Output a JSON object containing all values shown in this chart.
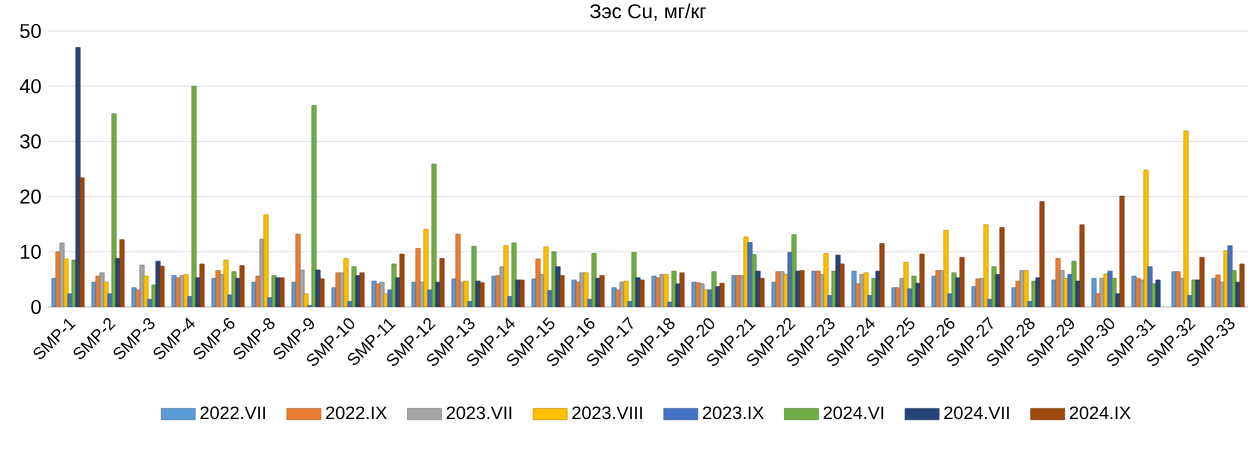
{
  "chart_data": {
    "type": "bar",
    "title": "Зэс Cu, мг/кг",
    "categories": [
      "SMP-1",
      "SMP-2",
      "SMP-3",
      "SMP-4",
      "SMP-6",
      "SMP-8",
      "SMP-9",
      "SMP-10",
      "SMP-11",
      "SMP-12",
      "SMP-13",
      "SMP-14",
      "SMP-15",
      "SMP-16",
      "SMP-17",
      "SMP-18",
      "SMP-20",
      "SMP-21",
      "SMP-22",
      "SMP-23",
      "SMP-24",
      "SMP-25",
      "SMP-26",
      "SMP-27",
      "SMP-28",
      "SMP-29",
      "SMP-30",
      "SMP-31",
      "SMP-32",
      "SMP-33"
    ],
    "series": [
      {
        "name": "2022.VII",
        "color": "#5b9bd5",
        "values": [
          5.2,
          4.5,
          3.5,
          5.7,
          5.2,
          4.5,
          4.5,
          3.5,
          4.7,
          4.5,
          5.1,
          5.6,
          5.1,
          4.9,
          3.5,
          5.6,
          4.5,
          5.7,
          4.5,
          6.5,
          6.5,
          3.5,
          5.6,
          3.7,
          3.5,
          4.9,
          5.2,
          5.6,
          6.4,
          5.2
        ]
      },
      {
        "name": "2022.IX",
        "color": "#ed7d31",
        "values": [
          10,
          5.6,
          3.1,
          5.3,
          6.6,
          5.6,
          13.2,
          6.2,
          4.2,
          10.6,
          13.2,
          5.7,
          8.7,
          4.5,
          3.1,
          5.3,
          4.4,
          5.7,
          6.4,
          6.5,
          4.2,
          3.5,
          6.6,
          5.1,
          4.7,
          8.8,
          2.4,
          5.2,
          6.4,
          5.8
        ]
      },
      {
        "name": "2023.VII",
        "color": "#a5a5a5",
        "values": [
          11.6,
          6.2,
          7.6,
          5.7,
          5.9,
          12.3,
          6.7,
          6.2,
          4.5,
          4.5,
          4.5,
          7.3,
          5.9,
          6.2,
          4.5,
          5.9,
          4.2,
          5.7,
          6.4,
          5.9,
          5.9,
          5.2,
          6.6,
          5.2,
          6.6,
          6.6,
          5.2,
          4.9,
          5.2,
          4.5
        ]
      },
      {
        "name": "2023.VIII",
        "color": "#ffc000",
        "values": [
          8.7,
          4.5,
          5.6,
          5.9,
          8.5,
          16.7,
          2.4,
          8.8,
          2.4,
          14.1,
          4.7,
          11.1,
          10.9,
          6.2,
          4.7,
          5.9,
          3.1,
          12.7,
          5.9,
          9.7,
          6.2,
          8.1,
          13.9,
          14.9,
          6.6,
          5.2,
          6,
          24.8,
          31.9,
          10.2
        ]
      },
      {
        "name": "2023.IX",
        "color": "#4472c4",
        "values": [
          2.4,
          2.4,
          1.4,
          1.9,
          2.2,
          1.7,
          0.3,
          1,
          3.1,
          3.1,
          1,
          1.9,
          3,
          1.4,
          1,
          0.9,
          3.1,
          11.7,
          9.9,
          2.1,
          2.1,
          3.3,
          2.4,
          1.4,
          1,
          5.9,
          6.5,
          7.3,
          2.1,
          11.1
        ]
      },
      {
        "name": "2024.VI",
        "color": "#70ad47",
        "values": [
          8.5,
          35,
          4,
          40,
          6.4,
          5.7,
          36.5,
          7.3,
          7.8,
          25.9,
          11,
          11.6,
          10,
          9.7,
          9.9,
          6.5,
          6.4,
          9.5,
          13.1,
          6.5,
          5.2,
          5.6,
          6.2,
          7.3,
          4.7,
          8.3,
          5.2,
          4.2,
          4.9,
          6.6
        ]
      },
      {
        "name": "2024.VII",
        "color": "#264478",
        "values": [
          47,
          8.8,
          8.3,
          5.3,
          5.2,
          5.3,
          6.7,
          5.7,
          5.3,
          4.5,
          4.7,
          4.9,
          7.3,
          5.2,
          5.3,
          4.2,
          3.7,
          6.5,
          6.5,
          9.4,
          6.5,
          4.3,
          5.3,
          5.9,
          5.3,
          4.7,
          2.4,
          4.9,
          4.9,
          4.5
        ]
      },
      {
        "name": "2024.IX",
        "color": "#9e480e",
        "values": [
          23.4,
          12.2,
          7.4,
          7.8,
          7.5,
          5.3,
          5.1,
          6.2,
          9.6,
          8.8,
          4.4,
          4.9,
          5.7,
          5.7,
          4.9,
          6.2,
          4.3,
          5.2,
          6.6,
          7.8,
          11.5,
          9.6,
          9,
          14.4,
          19.1,
          14.9,
          20.1,
          null,
          9,
          7.8
        ]
      }
    ],
    "ylim": [
      0,
      50
    ],
    "yticks": [
      0,
      10,
      20,
      30,
      40,
      50
    ],
    "grid": "y",
    "legend": "bottom"
  }
}
